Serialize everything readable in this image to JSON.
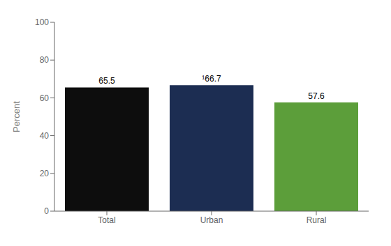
{
  "chart_data": {
    "type": "bar",
    "categories": [
      "Total",
      "Urban",
      "Rural"
    ],
    "values": [
      65.5,
      66.7,
      57.6
    ],
    "value_labels": [
      "65.5",
      "¹66.7",
      "57.6"
    ],
    "data_labels": true,
    "colors": [
      "#0d0d0d",
      "#1c2d52",
      "#5c9e3a"
    ],
    "ylabel": "Percent",
    "ylim": [
      0,
      100
    ],
    "yticks": [
      0,
      20,
      40,
      60,
      80,
      100
    ],
    "grid": false
  }
}
